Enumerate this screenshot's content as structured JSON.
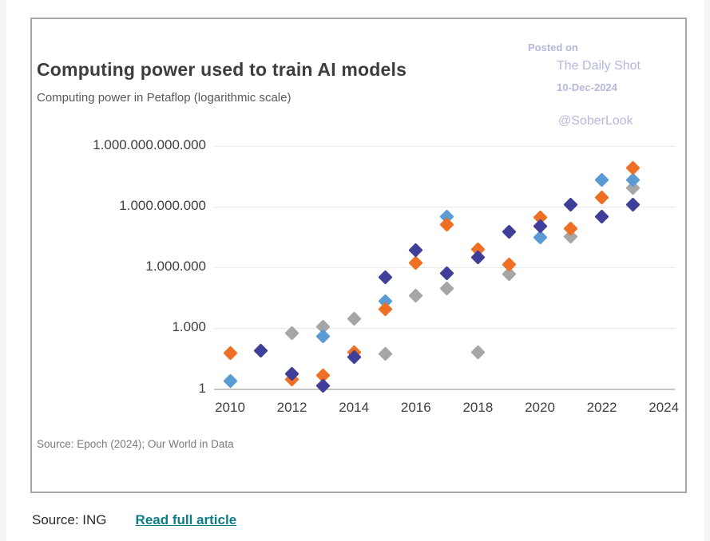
{
  "card": {
    "watermark": {
      "line1": "Posted on",
      "line2": "The Daily Shot",
      "line3": "10-Dec-2024",
      "line4": "@SoberLook"
    },
    "source": "Source: Epoch (2024); Our World in Data"
  },
  "footer": {
    "source_label": "Source: ING",
    "link_label": "Read full article",
    "link_color": "#0b7d88"
  },
  "colors": {
    "orange": "#ed7024",
    "navy": "#3f3f99",
    "light_blue": "#5b9bd5",
    "gray": "#a6a6a6",
    "watermark_text": "#b5b8dd",
    "grid": "#d8d8d8",
    "axis": "#c7c7c7"
  },
  "chart_data": {
    "type": "scatter",
    "title": "Computing power used to train AI models",
    "subtitle": "Computing power in Petaflop (logarithmic scale)",
    "marker": "diamond",
    "legend": "none",
    "grid": "horizontal-dotted",
    "y_axis": {
      "scale": "log",
      "range": [
        1,
        1000000000000
      ],
      "ticks": [
        {
          "label": "1",
          "value": 1
        },
        {
          "label": "1.000",
          "value": 1000
        },
        {
          "label": "1.000.000",
          "value": 1000000
        },
        {
          "label": "1.000.000.000",
          "value": 1000000000
        },
        {
          "label": "1.000.000.000.000",
          "value": 1000000000000
        }
      ]
    },
    "x_axis": {
      "range": [
        2010,
        2024
      ],
      "ticks": [
        2010,
        2012,
        2014,
        2016,
        2018,
        2020,
        2022,
        2024
      ]
    },
    "series": [
      {
        "name": "gray",
        "color": "#a6a6a6",
        "points": [
          {
            "x": 2012,
            "y": 550
          },
          {
            "x": 2013,
            "y": 1200
          },
          {
            "x": 2014,
            "y": 3000
          },
          {
            "x": 2015,
            "y": 56
          },
          {
            "x": 2016,
            "y": 40000
          },
          {
            "x": 2017,
            "y": 90000
          },
          {
            "x": 2018,
            "y": 65
          },
          {
            "x": 2019,
            "y": 450000
          },
          {
            "x": 2021,
            "y": 32000000
          },
          {
            "x": 2023,
            "y": 8700000000
          }
        ]
      },
      {
        "name": "light-blue",
        "color": "#5b9bd5",
        "points": [
          {
            "x": 2010,
            "y": 2.5
          },
          {
            "x": 2013,
            "y": 400
          },
          {
            "x": 2015,
            "y": 22000
          },
          {
            "x": 2017,
            "y": 330000000
          },
          {
            "x": 2020,
            "y": 30000000
          },
          {
            "x": 2022,
            "y": 20000000000
          },
          {
            "x": 2023,
            "y": 20000000000
          }
        ]
      },
      {
        "name": "orange",
        "color": "#ed7024",
        "points": [
          {
            "x": 2010,
            "y": 60
          },
          {
            "x": 2012,
            "y": 3
          },
          {
            "x": 2013,
            "y": 4.5
          },
          {
            "x": 2014,
            "y": 62
          },
          {
            "x": 2015,
            "y": 9000
          },
          {
            "x": 2016,
            "y": 1700000
          },
          {
            "x": 2017,
            "y": 130000000
          },
          {
            "x": 2018,
            "y": 8000000
          },
          {
            "x": 2019,
            "y": 1400000
          },
          {
            "x": 2020,
            "y": 300000000
          },
          {
            "x": 2021,
            "y": 80000000
          },
          {
            "x": 2022,
            "y": 2700000000
          },
          {
            "x": 2023,
            "y": 84000000000
          }
        ]
      },
      {
        "name": "navy",
        "color": "#3f3f99",
        "points": [
          {
            "x": 2011,
            "y": 80
          },
          {
            "x": 2012,
            "y": 5.5
          },
          {
            "x": 2013,
            "y": 1.5
          },
          {
            "x": 2014,
            "y": 36
          },
          {
            "x": 2015,
            "y": 340000
          },
          {
            "x": 2016,
            "y": 7000000
          },
          {
            "x": 2017,
            "y": 500000
          },
          {
            "x": 2018,
            "y": 3000000
          },
          {
            "x": 2019,
            "y": 55000000
          },
          {
            "x": 2020,
            "y": 110000000
          },
          {
            "x": 2021,
            "y": 1200000000
          },
          {
            "x": 2022,
            "y": 330000000
          },
          {
            "x": 2023,
            "y": 1200000000
          }
        ]
      }
    ]
  }
}
